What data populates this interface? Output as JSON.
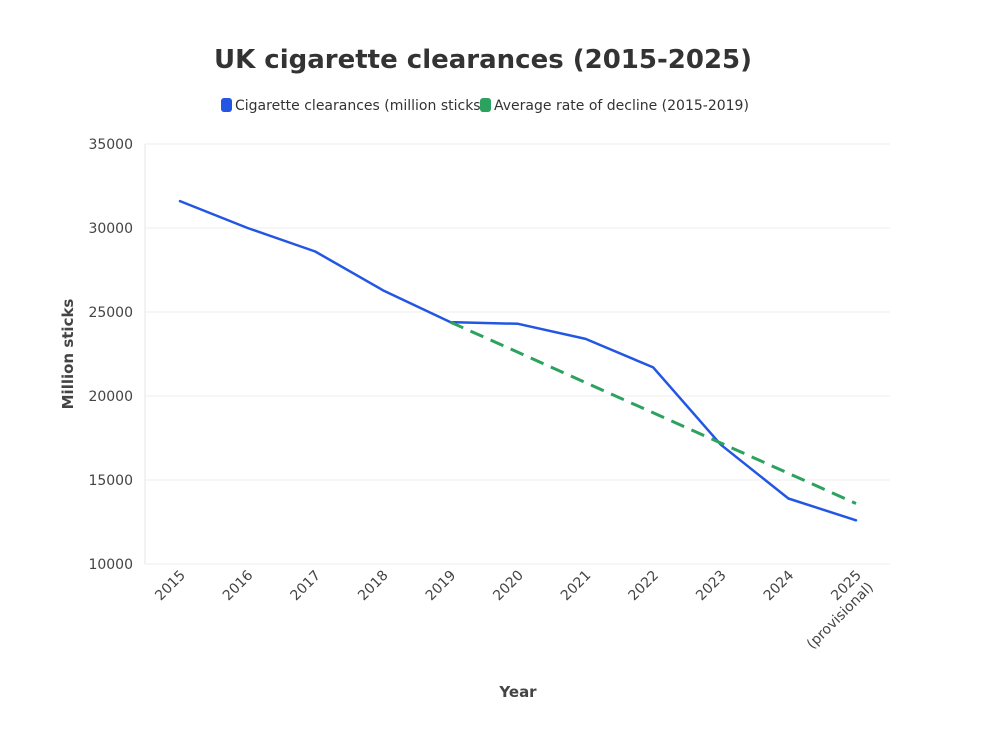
{
  "chart_data": {
    "type": "line",
    "title": "UK cigarette clearances (2015-2025)",
    "xlabel": "Year",
    "ylabel": "Million sticks",
    "ylim": [
      10000,
      35000
    ],
    "yticks": [
      10000,
      15000,
      20000,
      25000,
      30000,
      35000
    ],
    "categories": [
      "2015",
      "2016",
      "2017",
      "2018",
      "2019",
      "2020",
      "2021",
      "2022",
      "2023",
      "2024",
      "2025\n(provisional)"
    ],
    "grid": true,
    "legend_position": "top-center",
    "series": [
      {
        "name": "Cigarette clearances (million sticks)",
        "color": "#2456e4",
        "dash": "solid",
        "values": [
          31600,
          30000,
          28600,
          26300,
          24400,
          24300,
          23400,
          21700,
          17100,
          13900,
          12600
        ]
      },
      {
        "name": "Average rate of decline (2015-2019)",
        "color": "#2ca25f",
        "dash": "dashed",
        "values": [
          null,
          null,
          null,
          null,
          24400,
          22600,
          20800,
          19000,
          17200,
          15400,
          13600
        ]
      }
    ]
  }
}
